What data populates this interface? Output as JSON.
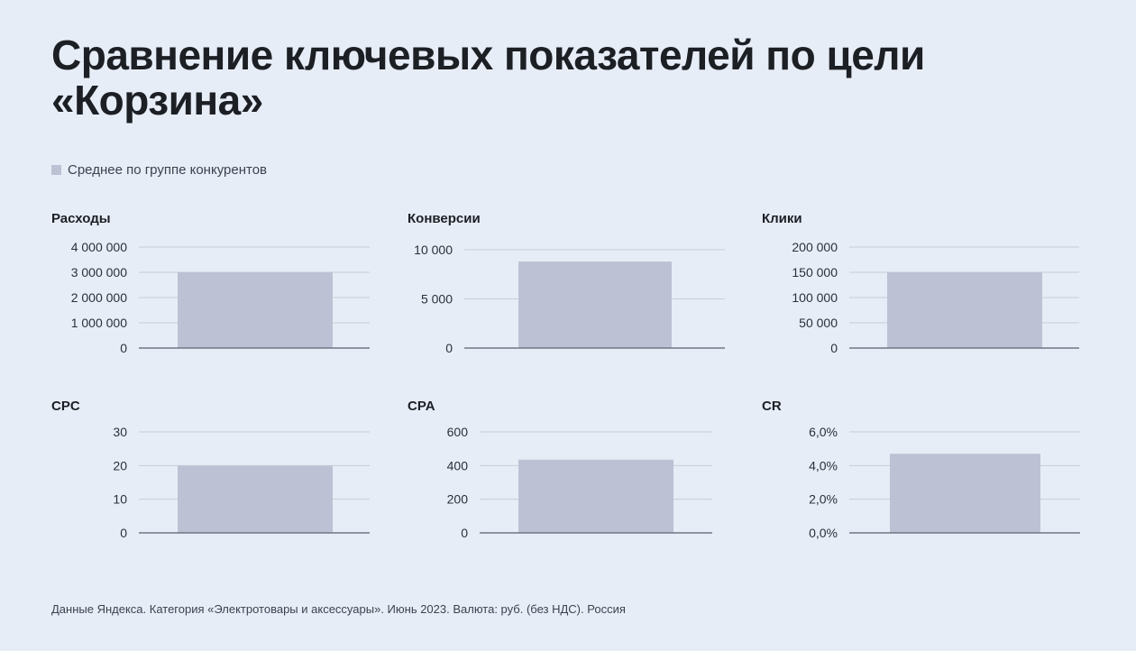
{
  "title": "Сравнение ключевых показателей по цели «Корзина»",
  "legend": {
    "label": "Среднее по группе конкурентов",
    "color": "#bcc2d4"
  },
  "footer": "Данные Яндекса. Категория «Электротовары и аксессуары». Июнь 2023. Валюта: руб. (без НДС). Россия",
  "colors": {
    "bar": "#bcc2d4",
    "grid": "#c7ccd6",
    "axis": "#6f7785",
    "background": "#e7edf7"
  },
  "chart_data": [
    {
      "type": "bar",
      "title": "Расходы",
      "series": [
        {
          "name": "Среднее по группе конкурентов",
          "values": [
            3000000
          ]
        }
      ],
      "ylim": [
        0,
        4000000
      ],
      "ticks": [
        "0",
        "1 000 000",
        "2 000 000",
        "3 000 000",
        "4 000 000"
      ],
      "tick_values": [
        0,
        1000000,
        2000000,
        3000000,
        4000000
      ],
      "grid": true
    },
    {
      "type": "bar",
      "title": "Конверсии",
      "series": [
        {
          "name": "Среднее по группе конкурентов",
          "values": [
            8800
          ]
        }
      ],
      "ylim": [
        0,
        10000
      ],
      "ticks": [
        "0",
        "5 000",
        "10 000"
      ],
      "tick_values": [
        0,
        5000,
        10000
      ],
      "grid": true
    },
    {
      "type": "bar",
      "title": "Клики",
      "series": [
        {
          "name": "Среднее по группе конкурентов",
          "values": [
            150000
          ]
        }
      ],
      "ylim": [
        0,
        200000
      ],
      "ticks": [
        "0",
        "50 000",
        "100 000",
        "150 000",
        "200 000"
      ],
      "tick_values": [
        0,
        50000,
        100000,
        150000,
        200000
      ],
      "grid": true
    },
    {
      "type": "bar",
      "title": "CPC",
      "series": [
        {
          "name": "Среднее по группе конкурентов",
          "values": [
            20
          ]
        }
      ],
      "ylim": [
        0,
        30
      ],
      "ticks": [
        "0",
        "10",
        "20",
        "30"
      ],
      "tick_values": [
        0,
        10,
        20,
        30
      ],
      "grid": true
    },
    {
      "type": "bar",
      "title": "CPA",
      "series": [
        {
          "name": "Среднее по группе конкурентов",
          "values": [
            435
          ]
        }
      ],
      "ylim": [
        0,
        600
      ],
      "ticks": [
        "0",
        "200",
        "400",
        "600"
      ],
      "tick_values": [
        0,
        200,
        400,
        600
      ],
      "grid": true
    },
    {
      "type": "bar",
      "title": "CR",
      "series": [
        {
          "name": "Среднее по группе конкурентов",
          "values": [
            4.7
          ]
        }
      ],
      "ylim": [
        0,
        6
      ],
      "ticks": [
        "0,0%",
        "2,0%",
        "4,0%",
        "6,0%"
      ],
      "tick_values": [
        0,
        2,
        4,
        6
      ],
      "grid": true
    }
  ]
}
